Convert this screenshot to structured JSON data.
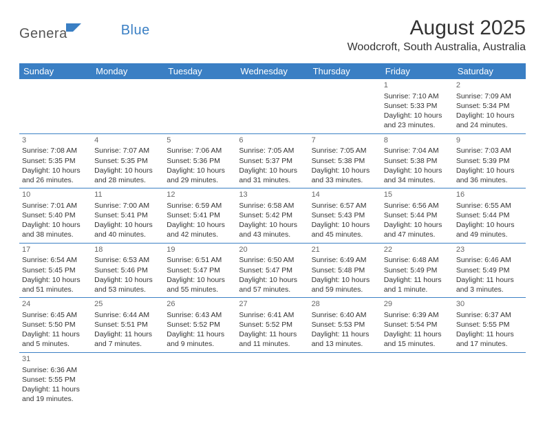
{
  "logo": {
    "part1": "Genera",
    "part2": "Blue"
  },
  "title": "August 2025",
  "location": "Woodcroft, South Australia, Australia",
  "colors": {
    "header_bg": "#3a7fc4",
    "header_text": "#ffffff",
    "border": "#3a7fc4",
    "text": "#333333",
    "daynum": "#666666",
    "logo_gray": "#555555",
    "logo_blue": "#3a7fc4"
  },
  "weekdays": [
    "Sunday",
    "Monday",
    "Tuesday",
    "Wednesday",
    "Thursday",
    "Friday",
    "Saturday"
  ],
  "weeks": [
    [
      null,
      null,
      null,
      null,
      null,
      {
        "n": "1",
        "sr": "Sunrise: 7:10 AM",
        "ss": "Sunset: 5:33 PM",
        "d1": "Daylight: 10 hours",
        "d2": "and 23 minutes."
      },
      {
        "n": "2",
        "sr": "Sunrise: 7:09 AM",
        "ss": "Sunset: 5:34 PM",
        "d1": "Daylight: 10 hours",
        "d2": "and 24 minutes."
      }
    ],
    [
      {
        "n": "3",
        "sr": "Sunrise: 7:08 AM",
        "ss": "Sunset: 5:35 PM",
        "d1": "Daylight: 10 hours",
        "d2": "and 26 minutes."
      },
      {
        "n": "4",
        "sr": "Sunrise: 7:07 AM",
        "ss": "Sunset: 5:35 PM",
        "d1": "Daylight: 10 hours",
        "d2": "and 28 minutes."
      },
      {
        "n": "5",
        "sr": "Sunrise: 7:06 AM",
        "ss": "Sunset: 5:36 PM",
        "d1": "Daylight: 10 hours",
        "d2": "and 29 minutes."
      },
      {
        "n": "6",
        "sr": "Sunrise: 7:05 AM",
        "ss": "Sunset: 5:37 PM",
        "d1": "Daylight: 10 hours",
        "d2": "and 31 minutes."
      },
      {
        "n": "7",
        "sr": "Sunrise: 7:05 AM",
        "ss": "Sunset: 5:38 PM",
        "d1": "Daylight: 10 hours",
        "d2": "and 33 minutes."
      },
      {
        "n": "8",
        "sr": "Sunrise: 7:04 AM",
        "ss": "Sunset: 5:38 PM",
        "d1": "Daylight: 10 hours",
        "d2": "and 34 minutes."
      },
      {
        "n": "9",
        "sr": "Sunrise: 7:03 AM",
        "ss": "Sunset: 5:39 PM",
        "d1": "Daylight: 10 hours",
        "d2": "and 36 minutes."
      }
    ],
    [
      {
        "n": "10",
        "sr": "Sunrise: 7:01 AM",
        "ss": "Sunset: 5:40 PM",
        "d1": "Daylight: 10 hours",
        "d2": "and 38 minutes."
      },
      {
        "n": "11",
        "sr": "Sunrise: 7:00 AM",
        "ss": "Sunset: 5:41 PM",
        "d1": "Daylight: 10 hours",
        "d2": "and 40 minutes."
      },
      {
        "n": "12",
        "sr": "Sunrise: 6:59 AM",
        "ss": "Sunset: 5:41 PM",
        "d1": "Daylight: 10 hours",
        "d2": "and 42 minutes."
      },
      {
        "n": "13",
        "sr": "Sunrise: 6:58 AM",
        "ss": "Sunset: 5:42 PM",
        "d1": "Daylight: 10 hours",
        "d2": "and 43 minutes."
      },
      {
        "n": "14",
        "sr": "Sunrise: 6:57 AM",
        "ss": "Sunset: 5:43 PM",
        "d1": "Daylight: 10 hours",
        "d2": "and 45 minutes."
      },
      {
        "n": "15",
        "sr": "Sunrise: 6:56 AM",
        "ss": "Sunset: 5:44 PM",
        "d1": "Daylight: 10 hours",
        "d2": "and 47 minutes."
      },
      {
        "n": "16",
        "sr": "Sunrise: 6:55 AM",
        "ss": "Sunset: 5:44 PM",
        "d1": "Daylight: 10 hours",
        "d2": "and 49 minutes."
      }
    ],
    [
      {
        "n": "17",
        "sr": "Sunrise: 6:54 AM",
        "ss": "Sunset: 5:45 PM",
        "d1": "Daylight: 10 hours",
        "d2": "and 51 minutes."
      },
      {
        "n": "18",
        "sr": "Sunrise: 6:53 AM",
        "ss": "Sunset: 5:46 PM",
        "d1": "Daylight: 10 hours",
        "d2": "and 53 minutes."
      },
      {
        "n": "19",
        "sr": "Sunrise: 6:51 AM",
        "ss": "Sunset: 5:47 PM",
        "d1": "Daylight: 10 hours",
        "d2": "and 55 minutes."
      },
      {
        "n": "20",
        "sr": "Sunrise: 6:50 AM",
        "ss": "Sunset: 5:47 PM",
        "d1": "Daylight: 10 hours",
        "d2": "and 57 minutes."
      },
      {
        "n": "21",
        "sr": "Sunrise: 6:49 AM",
        "ss": "Sunset: 5:48 PM",
        "d1": "Daylight: 10 hours",
        "d2": "and 59 minutes."
      },
      {
        "n": "22",
        "sr": "Sunrise: 6:48 AM",
        "ss": "Sunset: 5:49 PM",
        "d1": "Daylight: 11 hours",
        "d2": "and 1 minute."
      },
      {
        "n": "23",
        "sr": "Sunrise: 6:46 AM",
        "ss": "Sunset: 5:49 PM",
        "d1": "Daylight: 11 hours",
        "d2": "and 3 minutes."
      }
    ],
    [
      {
        "n": "24",
        "sr": "Sunrise: 6:45 AM",
        "ss": "Sunset: 5:50 PM",
        "d1": "Daylight: 11 hours",
        "d2": "and 5 minutes."
      },
      {
        "n": "25",
        "sr": "Sunrise: 6:44 AM",
        "ss": "Sunset: 5:51 PM",
        "d1": "Daylight: 11 hours",
        "d2": "and 7 minutes."
      },
      {
        "n": "26",
        "sr": "Sunrise: 6:43 AM",
        "ss": "Sunset: 5:52 PM",
        "d1": "Daylight: 11 hours",
        "d2": "and 9 minutes."
      },
      {
        "n": "27",
        "sr": "Sunrise: 6:41 AM",
        "ss": "Sunset: 5:52 PM",
        "d1": "Daylight: 11 hours",
        "d2": "and 11 minutes."
      },
      {
        "n": "28",
        "sr": "Sunrise: 6:40 AM",
        "ss": "Sunset: 5:53 PM",
        "d1": "Daylight: 11 hours",
        "d2": "and 13 minutes."
      },
      {
        "n": "29",
        "sr": "Sunrise: 6:39 AM",
        "ss": "Sunset: 5:54 PM",
        "d1": "Daylight: 11 hours",
        "d2": "and 15 minutes."
      },
      {
        "n": "30",
        "sr": "Sunrise: 6:37 AM",
        "ss": "Sunset: 5:55 PM",
        "d1": "Daylight: 11 hours",
        "d2": "and 17 minutes."
      }
    ],
    [
      {
        "n": "31",
        "sr": "Sunrise: 6:36 AM",
        "ss": "Sunset: 5:55 PM",
        "d1": "Daylight: 11 hours",
        "d2": "and 19 minutes."
      },
      null,
      null,
      null,
      null,
      null,
      null
    ]
  ]
}
